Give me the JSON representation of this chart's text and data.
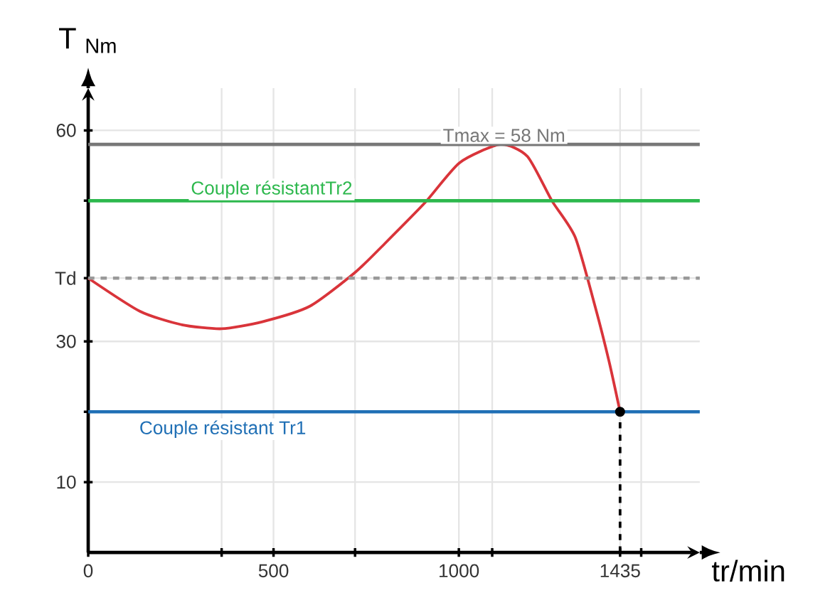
{
  "chart_data": {
    "type": "line",
    "xlabel": "tr/min",
    "ylabel": "T $_{Nm}$",
    "xlim": [
      0,
      1650
    ],
    "ylim": [
      0,
      66
    ],
    "xticks": [
      {
        "value": 0,
        "label": "0"
      },
      {
        "value": 360,
        "label": null
      },
      500,
      {
        "value": 720,
        "label": null
      },
      1000,
      {
        "value": 1090,
        "label": null
      },
      1435,
      {
        "value": 1492,
        "label": null
      }
    ],
    "yticks": [
      10,
      {
        "value": 20,
        "label": null
      },
      30,
      {
        "value": 39,
        "label": "Td"
      },
      {
        "value": 50,
        "label": null
      },
      60
    ],
    "grid": true,
    "marker": "none",
    "series": [
      {
        "color": "#d9343a",
        "x": [
          0,
          139,
          250,
          360,
          470,
          598,
          720,
          800,
          910,
          1002,
          1112,
          1185,
          1251,
          1314,
          1369,
          1406,
          1435
        ],
        "values": [
          39,
          34.3,
          32.4,
          31.8,
          32.8,
          35,
          39.8,
          43.9,
          49.8,
          55.4,
          58,
          56.3,
          50,
          44.8,
          34.7,
          27,
          20
        ]
      },
      {
        "color": "#000000",
        "x": [
          1435,
          1435
        ],
        "values": [
          0,
          20
        ],
        "line_style": "dashed"
      },
      {
        "type": "scatter",
        "color": "#000000",
        "marker": "circle",
        "x": [
          1435
        ],
        "values": [
          20
        ]
      }
    ],
    "ref_lines": [
      {
        "axis": "y",
        "value": 58,
        "label": "Tmax = 58 Nm",
        "color": "#777777"
      },
      {
        "axis": "y",
        "value": 50,
        "label": "Couple résistantTr2",
        "color": "#2db84d"
      },
      {
        "axis": "y",
        "value": 20,
        "label": "Couple résistant  Tr1",
        "color": "#1f6fb5"
      },
      {
        "axis": "y",
        "value": 39,
        "color": "#999999",
        "line_style": "dashed"
      }
    ]
  }
}
